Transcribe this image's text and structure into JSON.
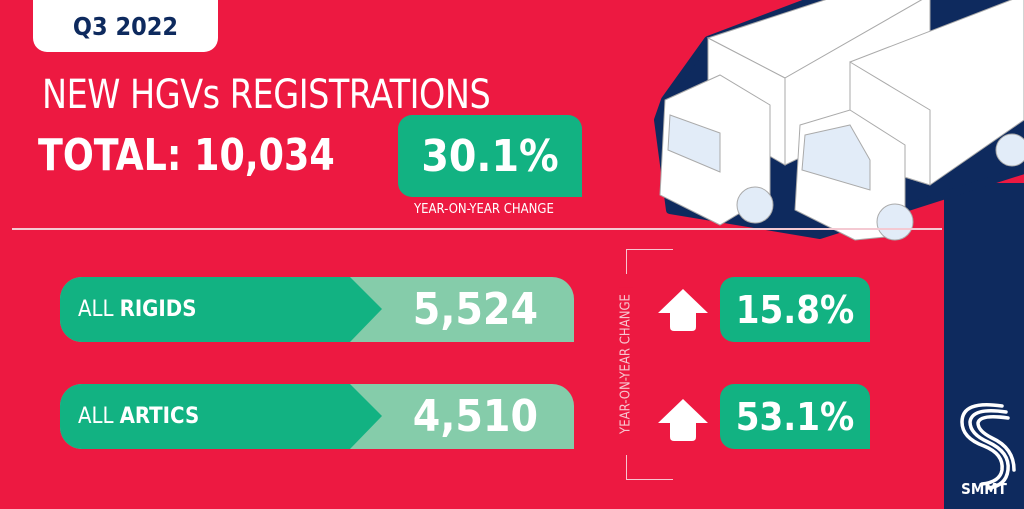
{
  "period": "Q3 2022",
  "title": "NEW HGVs REGISTRATIONS",
  "total": {
    "label": "TOTAL:",
    "value": "10,034",
    "change": "30.1%",
    "change_caption": "YEAR-ON-YEAR CHANGE"
  },
  "segments": [
    {
      "prefix": "ALL",
      "name": "RIGIDS",
      "value": "5,524",
      "change": "15.8%",
      "direction": "up"
    },
    {
      "prefix": "ALL",
      "name": "ARTICS",
      "value": "4,510",
      "change": "53.1%",
      "direction": "up"
    }
  ],
  "side_caption": "YEAR-ON-YEAR CHANGE",
  "brand": {
    "name": "SMMT"
  },
  "colors": {
    "background": "#ED1941",
    "green": "#12B282",
    "light_green": "#85CCAA",
    "navy": "#0E2A5E"
  },
  "icons": [
    "arrow-up-icon",
    "truck-illustration",
    "smmt-logo"
  ]
}
